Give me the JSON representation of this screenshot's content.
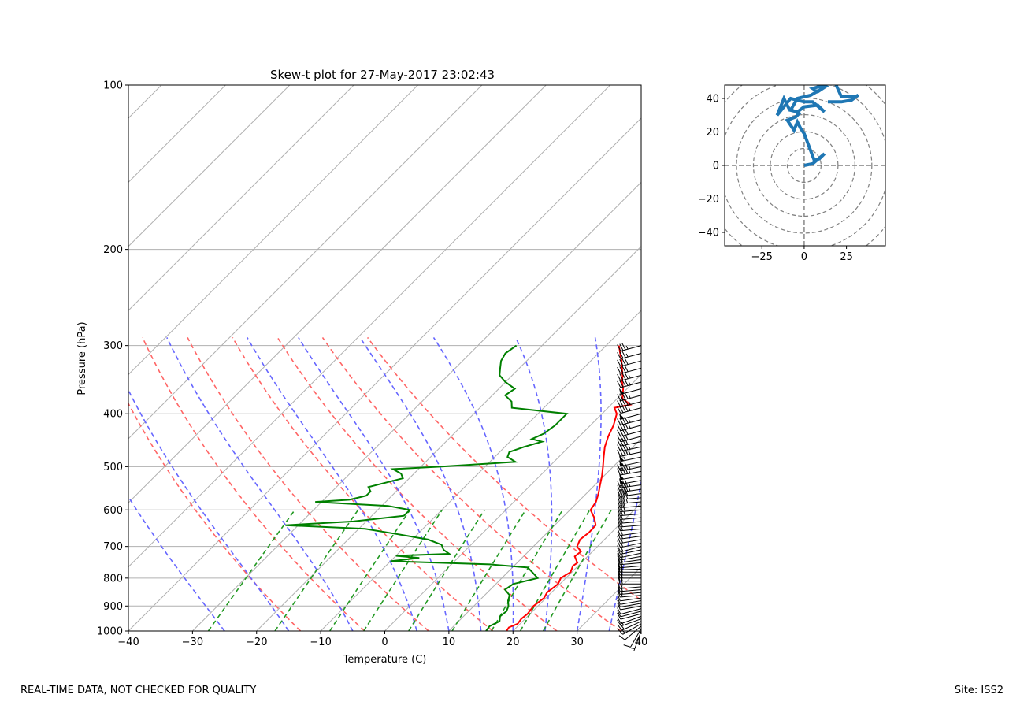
{
  "colors": {
    "temperature": "#ff0000",
    "dewpoint": "#008000",
    "dry_adiabat": "#ff6666",
    "moist_adiabat": "#6666ff",
    "mixing_ratio": "#229922",
    "isotherm": "#b0b0b0",
    "hodograph": "#1f77b4",
    "hodo_grid": "#808080",
    "barb": "#000000"
  },
  "footer": {
    "left": "REAL-TIME DATA, NOT CHECKED FOR QUALITY",
    "right": "Site: ISS2"
  },
  "chart_data": [
    {
      "type": "line",
      "subtype": "skew-t",
      "title": "Skew-t plot for 27-May-2017 23:02:43",
      "xlabel": "Temperature (C)",
      "ylabel": "Pressure (hPa)",
      "xlim": [
        -40,
        40
      ],
      "ylim": [
        1000,
        100
      ],
      "y_scale": "log",
      "xticks": [
        -40,
        -30,
        -20,
        -10,
        0,
        10,
        20,
        30,
        40
      ],
      "yticks": [
        1000,
        900,
        800,
        700,
        600,
        500,
        400,
        300,
        200,
        100
      ],
      "grid": true,
      "series": [
        {
          "name": "temperature",
          "points": [
            [
              1000,
              19.0
            ],
            [
              985,
              18.8
            ],
            [
              970,
              19.6
            ],
            [
              950,
              19.4
            ],
            [
              930,
              19.6
            ],
            [
              900,
              19.3
            ],
            [
              870,
              19.7
            ],
            [
              850,
              19.3
            ],
            [
              820,
              19.7
            ],
            [
              800,
              19.2
            ],
            [
              780,
              19.8
            ],
            [
              760,
              19.2
            ],
            [
              750,
              19.4
            ],
            [
              730,
              18.0
            ],
            [
              715,
              18.2
            ],
            [
              700,
              16.8
            ],
            [
              680,
              16.2
            ],
            [
              660,
              16.5
            ],
            [
              640,
              16.4
            ],
            [
              620,
              15.0
            ],
            [
              600,
              13.2
            ],
            [
              580,
              12.8
            ],
            [
              560,
              11.9
            ],
            [
              540,
              10.8
            ],
            [
              520,
              9.7
            ],
            [
              500,
              8.4
            ],
            [
              480,
              7.0
            ],
            [
              460,
              5.6
            ],
            [
              440,
              4.5
            ],
            [
              420,
              3.6
            ],
            [
              400,
              2.3
            ],
            [
              390,
              1.0
            ],
            [
              385,
              3.0
            ],
            [
              375,
              0.8
            ],
            [
              360,
              -0.6
            ],
            [
              350,
              -1.8
            ],
            [
              340,
              -2.8
            ],
            [
              330,
              -4.0
            ],
            [
              320,
              -5.2
            ],
            [
              310,
              -6.6
            ],
            [
              300,
              -8.0
            ]
          ]
        },
        {
          "name": "dewpoint",
          "points": [
            [
              1000,
              15.8
            ],
            [
              980,
              15.6
            ],
            [
              960,
              16.4
            ],
            [
              940,
              15.7
            ],
            [
              920,
              15.9
            ],
            [
              900,
              15.4
            ],
            [
              880,
              14.5
            ],
            [
              860,
              13.9
            ],
            [
              840,
              12.3
            ],
            [
              820,
              12.7
            ],
            [
              800,
              15.6
            ],
            [
              780,
              13.8
            ],
            [
              765,
              12.4
            ],
            [
              755,
              6.0
            ],
            [
              745,
              -10.0
            ],
            [
              735,
              -6.0
            ],
            [
              728,
              -10.0
            ],
            [
              722,
              -2.0
            ],
            [
              710,
              -3.5
            ],
            [
              695,
              -4.6
            ],
            [
              680,
              -7.5
            ],
            [
              665,
              -13.0
            ],
            [
              650,
              -19.0
            ],
            [
              640,
              -32.0
            ],
            [
              630,
              -22.0
            ],
            [
              615,
              -15.0
            ],
            [
              600,
              -15.0
            ],
            [
              590,
              -19.0
            ],
            [
              580,
              -31.0
            ],
            [
              575,
              -26.0
            ],
            [
              565,
              -24.0
            ],
            [
              555,
              -24.0
            ],
            [
              545,
              -25.0
            ],
            [
              535,
              -23.0
            ],
            [
              525,
              -21.0
            ],
            [
              515,
              -22.0
            ],
            [
              505,
              -24.0
            ],
            [
              500,
              -17.0
            ],
            [
              490,
              -6.0
            ],
            [
              480,
              -8.0
            ],
            [
              470,
              -8.5
            ],
            [
              460,
              -7.0
            ],
            [
              450,
              -5.0
            ],
            [
              445,
              -7.0
            ],
            [
              435,
              -6.0
            ],
            [
              420,
              -5.5
            ],
            [
              400,
              -5.5
            ],
            [
              390,
              -15.0
            ],
            [
              380,
              -16.0
            ],
            [
              370,
              -18.0
            ],
            [
              360,
              -17.5
            ],
            [
              350,
              -20.0
            ],
            [
              340,
              -22.0
            ],
            [
              330,
              -23.0
            ],
            [
              320,
              -24.0
            ],
            [
              310,
              -24.5
            ],
            [
              300,
              -24.0
            ]
          ]
        }
      ],
      "wind_barbs": {
        "pressures": [
          1000,
          990,
          980,
          970,
          960,
          950,
          940,
          930,
          920,
          910,
          900,
          890,
          880,
          870,
          860,
          850,
          840,
          830,
          820,
          810,
          800,
          790,
          780,
          770,
          760,
          750,
          740,
          730,
          720,
          710,
          700,
          690,
          680,
          670,
          660,
          650,
          640,
          630,
          620,
          610,
          600,
          590,
          580,
          570,
          560,
          550,
          540,
          530,
          520,
          510,
          500,
          490,
          480,
          470,
          460,
          450,
          440,
          430,
          420,
          410,
          400,
          390,
          380,
          370,
          360,
          350,
          340,
          330,
          320,
          310,
          300
        ],
        "speeds_kt": [
          5,
          10,
          10,
          15,
          20,
          15,
          10,
          10,
          10,
          10,
          10,
          10,
          10,
          10,
          15,
          15,
          15,
          15,
          20,
          20,
          20,
          20,
          20,
          20,
          15,
          15,
          15,
          15,
          15,
          15,
          15,
          15,
          15,
          15,
          20,
          20,
          20,
          20,
          20,
          25,
          30,
          30,
          35,
          40,
          40,
          45,
          45,
          50,
          50,
          45,
          45,
          50,
          55,
          45,
          45,
          40,
          40,
          40,
          45,
          45,
          50,
          45,
          45,
          45,
          50,
          45,
          45,
          40,
          40,
          35,
          35
        ],
        "directions_deg": [
          200,
          210,
          230,
          240,
          245,
          250,
          250,
          255,
          255,
          255,
          260,
          260,
          260,
          262,
          265,
          265,
          265,
          265,
          270,
          270,
          270,
          270,
          270,
          268,
          265,
          265,
          262,
          260,
          258,
          258,
          255,
          258,
          260,
          262,
          262,
          265,
          265,
          265,
          265,
          265,
          265,
          265,
          265,
          265,
          262,
          262,
          262,
          260,
          260,
          260,
          258,
          258,
          258,
          258,
          258,
          258,
          255,
          255,
          255,
          255,
          255,
          255,
          255,
          255,
          255,
          255,
          255,
          255,
          255,
          255,
          255
        ]
      }
    },
    {
      "type": "line",
      "subtype": "hodograph",
      "xlim": [
        -47,
        48
      ],
      "ylim": [
        -48,
        48
      ],
      "xticks": [
        -25,
        0,
        25
      ],
      "yticks": [
        -40,
        -20,
        0,
        20,
        40
      ],
      "ring_spacing": 10,
      "u": [
        0,
        5,
        12,
        9,
        6,
        0,
        -2,
        -4,
        -6,
        -10,
        -5,
        -3,
        -9,
        -12,
        -16,
        -8,
        0,
        5,
        12,
        8,
        0,
        -4,
        -8,
        -4,
        4,
        14,
        8,
        5,
        12,
        18,
        22,
        30,
        32,
        28,
        22,
        14
      ],
      "v": [
        0,
        1,
        7,
        4,
        3,
        19,
        22,
        26,
        21,
        27,
        29,
        31,
        34,
        40,
        30,
        40,
        38,
        38,
        32,
        36,
        35,
        32,
        33,
        40,
        42,
        48,
        44,
        46,
        48,
        50,
        41,
        41,
        42,
        39,
        38,
        38
      ]
    }
  ]
}
